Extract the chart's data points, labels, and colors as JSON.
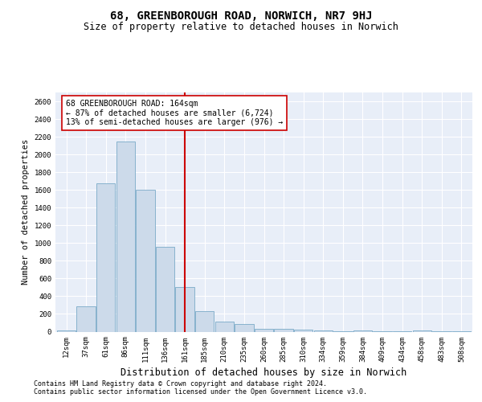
{
  "title": "68, GREENBOROUGH ROAD, NORWICH, NR7 9HJ",
  "subtitle": "Size of property relative to detached houses in Norwich",
  "xlabel": "Distribution of detached houses by size in Norwich",
  "ylabel": "Number of detached properties",
  "categories": [
    "12sqm",
    "37sqm",
    "61sqm",
    "86sqm",
    "111sqm",
    "136sqm",
    "161sqm",
    "185sqm",
    "210sqm",
    "235sqm",
    "260sqm",
    "285sqm",
    "310sqm",
    "334sqm",
    "359sqm",
    "384sqm",
    "409sqm",
    "434sqm",
    "458sqm",
    "483sqm",
    "508sqm"
  ],
  "values": [
    18,
    290,
    1670,
    2150,
    1600,
    960,
    500,
    235,
    115,
    90,
    35,
    30,
    20,
    12,
    8,
    18,
    5,
    5,
    12,
    5,
    5
  ],
  "bar_color": "#ccdaea",
  "bar_edge_color": "#7aaac8",
  "property_line_idx": 6,
  "property_line_color": "#cc0000",
  "annotation_text": "68 GREENBOROUGH ROAD: 164sqm\n← 87% of detached houses are smaller (6,724)\n13% of semi-detached houses are larger (976) →",
  "annotation_box_facecolor": "#ffffff",
  "annotation_box_edgecolor": "#cc0000",
  "ylim": [
    0,
    2700
  ],
  "yticks": [
    0,
    200,
    400,
    600,
    800,
    1000,
    1200,
    1400,
    1600,
    1800,
    2000,
    2200,
    2400,
    2600
  ],
  "footer_line1": "Contains HM Land Registry data © Crown copyright and database right 2024.",
  "footer_line2": "Contains public sector information licensed under the Open Government Licence v3.0.",
  "plot_bg_color": "#e8eef8",
  "fig_bg_color": "#ffffff",
  "grid_color": "#ffffff",
  "title_fontsize": 10,
  "subtitle_fontsize": 8.5,
  "ylabel_fontsize": 7.5,
  "xlabel_fontsize": 8.5,
  "tick_fontsize": 6.5,
  "annotation_fontsize": 7,
  "footer_fontsize": 6
}
